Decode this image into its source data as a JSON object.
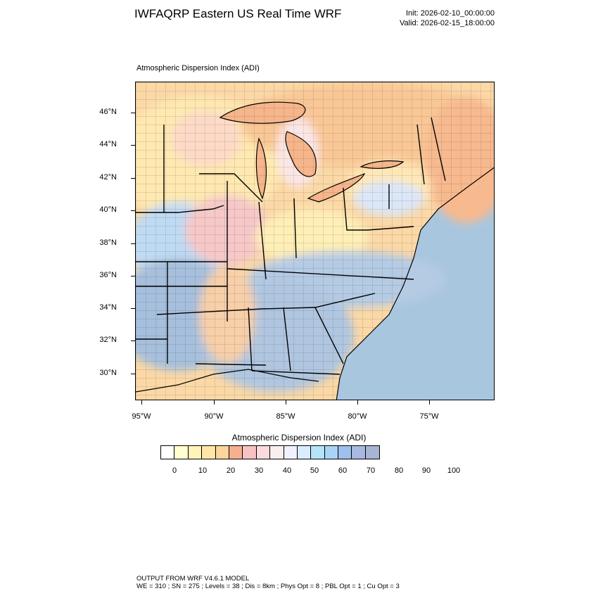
{
  "header": {
    "title": "IWFAQRP Eastern US Real Time WRF",
    "init": "Init: 2026-02-10_00:00:00",
    "valid": "Valid: 2026-02-15_18:00:00"
  },
  "map": {
    "subtitle": "Atmospheric Dispersion Index   (ADI)",
    "lat_labels": [
      "46°N",
      "44°N",
      "42°N",
      "40°N",
      "38°N",
      "36°N",
      "34°N",
      "32°N",
      "30°N"
    ],
    "lon_labels": [
      "95°W",
      "90°W",
      "85°W",
      "80°W",
      "75°W"
    ],
    "colors": {
      "ocean": "#a9c6df",
      "low": "#ffffc8",
      "mid": "#f7c49a",
      "high": "#9fb8d8"
    }
  },
  "colorbar": {
    "title": "Atmospheric Dispersion Index  (ADI)",
    "labels": [
      "0",
      "10",
      "20",
      "30",
      "40",
      "50",
      "60",
      "70",
      "80",
      "90",
      "100"
    ],
    "colors": [
      "#ffffff",
      "#ffffd0",
      "#fff3b8",
      "#ffe6a6",
      "#fbd59c",
      "#f6b08f",
      "#f6c2c2",
      "#fadadd",
      "#fbeeee",
      "#f1f1ff",
      "#d9edff",
      "#b5e3fb",
      "#a9d4f5",
      "#9ec0ec",
      "#a8b8e0",
      "#a5b5d2"
    ]
  },
  "footer": {
    "line1": "OUTPUT FROM WRF V4.6.1 MODEL",
    "line2": "WE = 310 ; SN = 275 ; Levels = 38 ; Dis = 8km ; Phys Opt = 8 ; PBL Opt = 1 ; Cu Opt = 3"
  }
}
